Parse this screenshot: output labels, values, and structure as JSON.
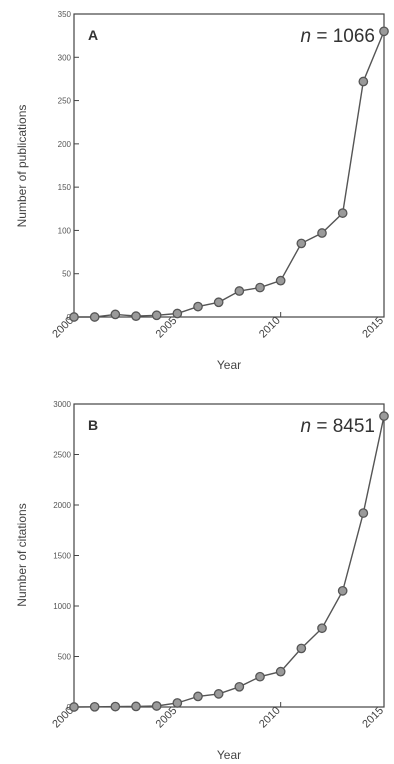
{
  "chart_data": [
    {
      "type": "line",
      "panel_label": "A",
      "annotation": {
        "var": "n",
        "eq": " = ",
        "value": "1066"
      },
      "xlabel": "Year",
      "ylabel": "Number of publications",
      "xlim": [
        2000,
        2015
      ],
      "ylim": [
        0,
        350
      ],
      "xticks": [
        "2000",
        "2005",
        "2010",
        "2015"
      ],
      "yticks": [
        "0",
        "50",
        "100",
        "150",
        "200",
        "250",
        "300",
        "350"
      ],
      "grid": false,
      "x": [
        2000,
        2001,
        2002,
        2003,
        2004,
        2005,
        2006,
        2007,
        2008,
        2009,
        2010,
        2011,
        2012,
        2013,
        2014,
        2015
      ],
      "y": [
        0,
        0,
        3,
        1,
        2,
        4,
        12,
        17,
        30,
        34,
        42,
        85,
        97,
        120,
        272,
        330
      ]
    },
    {
      "type": "line",
      "panel_label": "B",
      "annotation": {
        "var": "n",
        "eq": " = ",
        "value": "8451"
      },
      "xlabel": "Year",
      "ylabel": "Number of citations",
      "xlim": [
        2000,
        2015
      ],
      "ylim": [
        0,
        3000
      ],
      "xticks": [
        "2000",
        "2005",
        "2010",
        "2015"
      ],
      "yticks": [
        "0",
        "500",
        "1000",
        "1500",
        "2000",
        "2500",
        "3000"
      ],
      "grid": false,
      "x": [
        2000,
        2001,
        2002,
        2003,
        2004,
        2005,
        2006,
        2007,
        2008,
        2009,
        2010,
        2011,
        2012,
        2013,
        2014,
        2015
      ],
      "y": [
        0,
        2,
        4,
        6,
        10,
        40,
        105,
        130,
        200,
        300,
        350,
        580,
        780,
        1150,
        1920,
        2880
      ]
    }
  ]
}
